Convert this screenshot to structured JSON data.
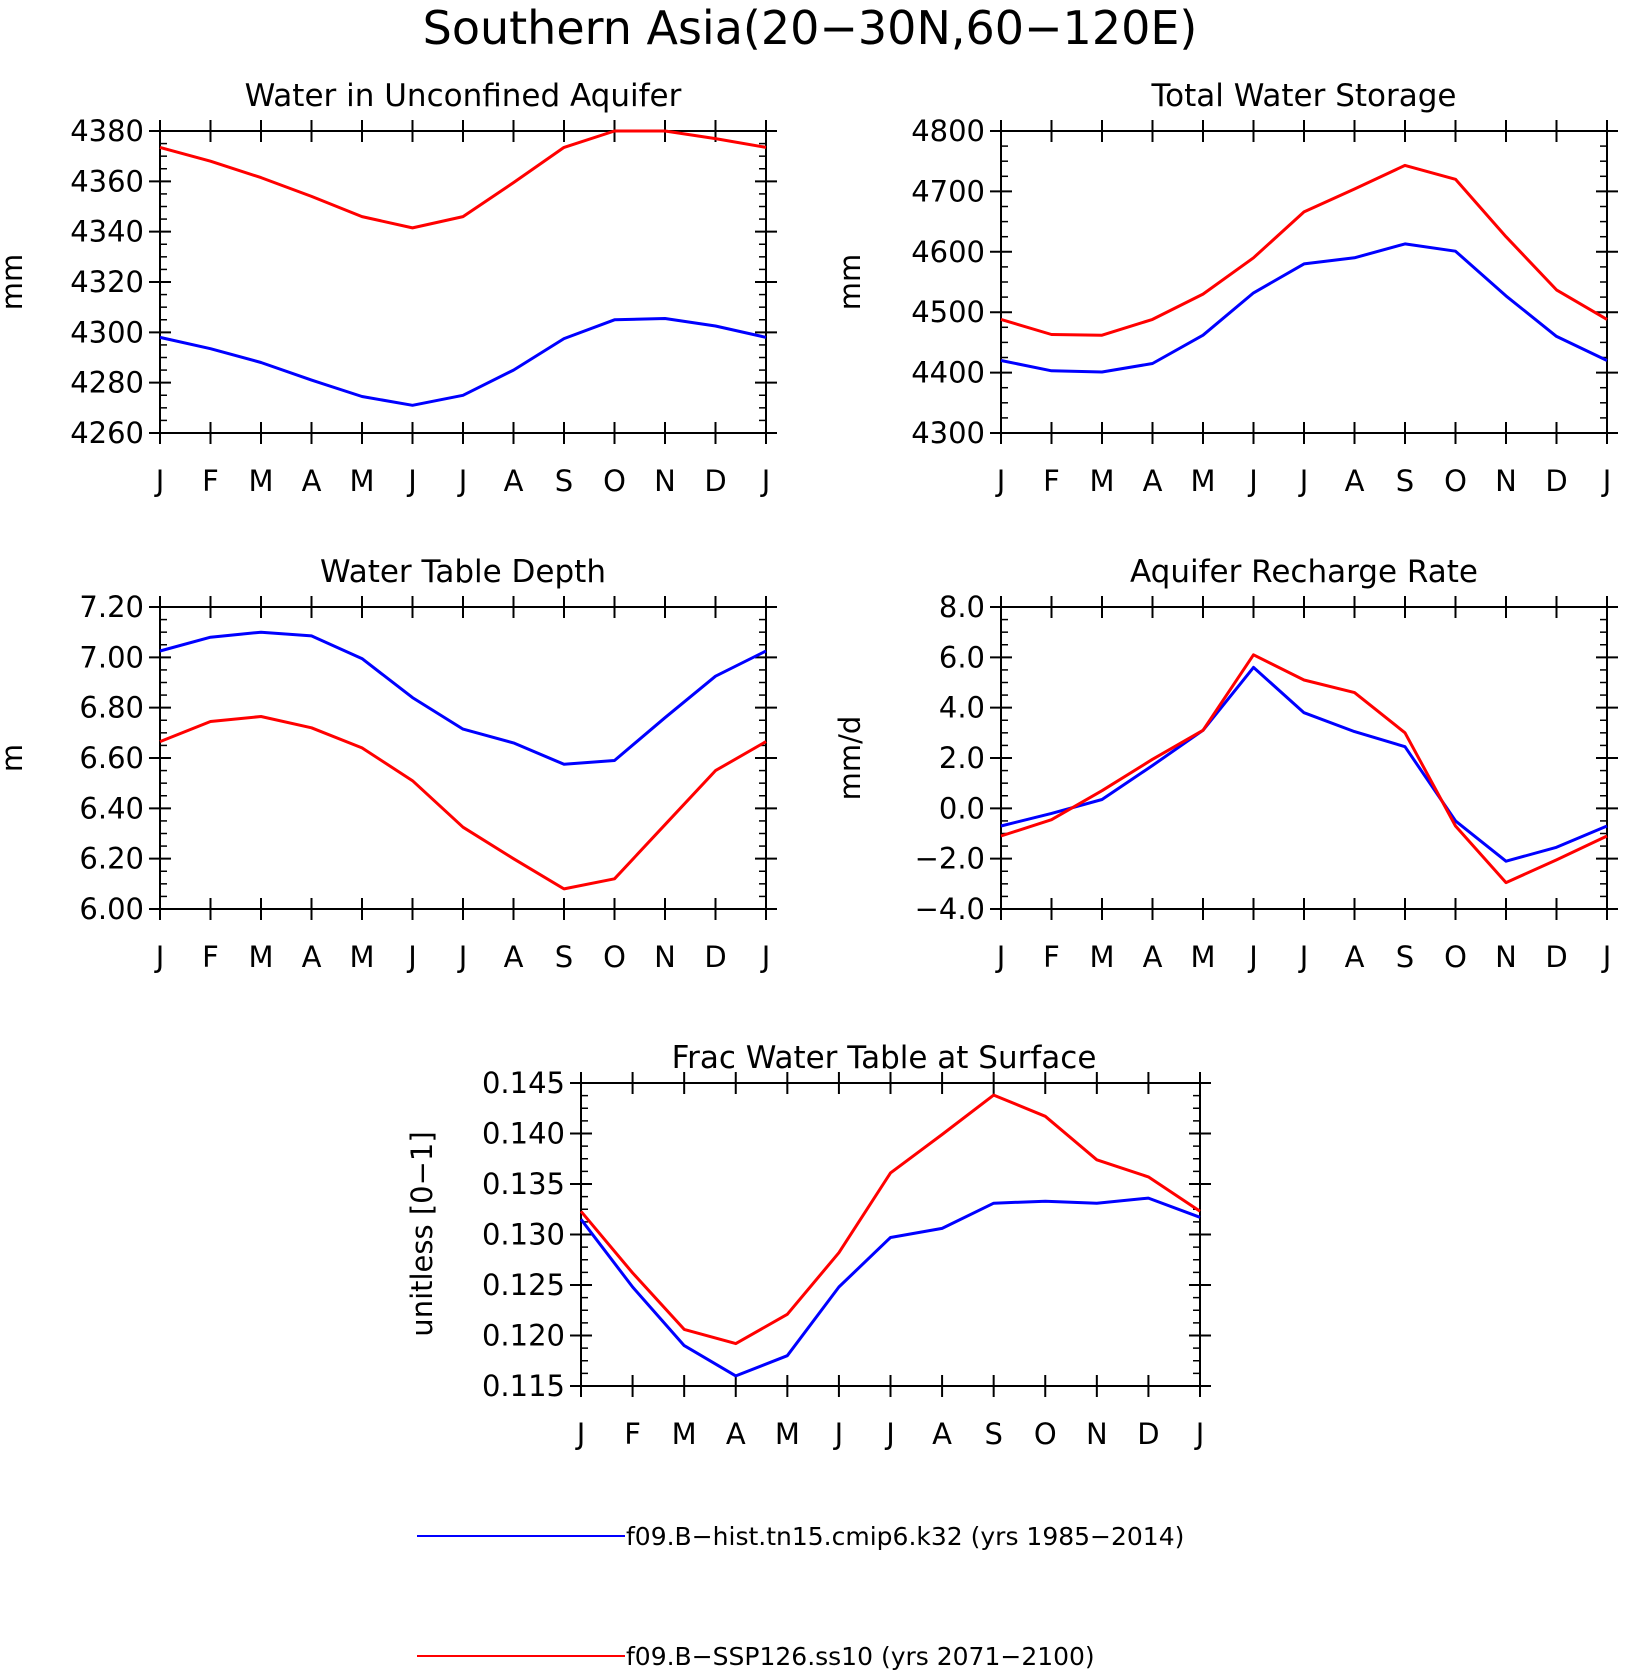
{
  "figure_title": "Southern Asia(20−30N,60−120E)",
  "legend": [
    {
      "label": "f09.B−hist.tn15.cmip6.k32 (yrs 1985−2014)",
      "color": "#0000ff"
    },
    {
      "label": "f09.B−SSP126.ss10 (yrs 2071−2100)",
      "color": "#ff0000"
    }
  ],
  "chart_data": [
    {
      "type": "line",
      "title": "Water in Unconfined Aquifer",
      "xlabel": "",
      "ylabel": "mm",
      "categories": [
        "J",
        "F",
        "M",
        "A",
        "M",
        "J",
        "J",
        "A",
        "S",
        "O",
        "N",
        "D",
        "J"
      ],
      "ylim": [
        4260,
        4380
      ],
      "yticks": [
        "4260",
        "4280",
        "4300",
        "4320",
        "4340",
        "4360",
        "4380"
      ],
      "grid": false,
      "series": [
        {
          "color": "#0000ff",
          "values": [
            4298,
            4293.5,
            4288,
            4281,
            4274.5,
            4271,
            4275,
            4285,
            4297.5,
            4305,
            4305.5,
            4302.5,
            4298
          ]
        },
        {
          "color": "#ff0000",
          "values": [
            4373.5,
            4368,
            4361.5,
            4354,
            4346,
            4341.5,
            4346,
            4359.5,
            4373.5,
            4380,
            4380,
            4377,
            4373.5
          ]
        }
      ]
    },
    {
      "type": "line",
      "title": "Total Water Storage",
      "xlabel": "",
      "ylabel": "mm",
      "categories": [
        "J",
        "F",
        "M",
        "A",
        "M",
        "J",
        "J",
        "A",
        "S",
        "O",
        "N",
        "D",
        "J"
      ],
      "ylim": [
        4300,
        4800
      ],
      "yticks": [
        "4300",
        "4400",
        "4500",
        "4600",
        "4700",
        "4800"
      ],
      "grid": false,
      "series": [
        {
          "color": "#0000ff",
          "values": [
            4420,
            4403,
            4401,
            4415,
            4462,
            4532,
            4580,
            4590,
            4613,
            4601,
            4527,
            4460,
            4420
          ]
        },
        {
          "color": "#ff0000",
          "values": [
            4488,
            4463,
            4462,
            4488,
            4530,
            4590,
            4666,
            4704,
            4743,
            4720,
            4625,
            4537,
            4488
          ]
        }
      ]
    },
    {
      "type": "line",
      "title": "Water Table Depth",
      "xlabel": "",
      "ylabel": "m",
      "categories": [
        "J",
        "F",
        "M",
        "A",
        "M",
        "J",
        "J",
        "A",
        "S",
        "O",
        "N",
        "D",
        "J"
      ],
      "ylim": [
        6.0,
        7.2
      ],
      "yticks": [
        "6.00",
        "6.20",
        "6.40",
        "6.60",
        "6.80",
        "7.00",
        "7.20"
      ],
      "grid": false,
      "series": [
        {
          "color": "#0000ff",
          "values": [
            7.025,
            7.08,
            7.1,
            7.085,
            6.995,
            6.84,
            6.715,
            6.66,
            6.575,
            6.59,
            6.76,
            6.925,
            7.025
          ]
        },
        {
          "color": "#ff0000",
          "values": [
            6.665,
            6.745,
            6.765,
            6.72,
            6.64,
            6.51,
            6.325,
            6.2,
            6.08,
            6.12,
            6.335,
            6.55,
            6.665
          ]
        }
      ]
    },
    {
      "type": "line",
      "title": "Aquifer Recharge Rate",
      "xlabel": "",
      "ylabel": "mm/d",
      "categories": [
        "J",
        "F",
        "M",
        "A",
        "M",
        "J",
        "J",
        "A",
        "S",
        "O",
        "N",
        "D",
        "J"
      ],
      "ylim": [
        -4.0,
        8.0
      ],
      "yticks": [
        "−4.0",
        "−2.0",
        "0.0",
        "2.0",
        "4.0",
        "6.0",
        "8.0"
      ],
      "grid": false,
      "series": [
        {
          "color": "#0000ff",
          "values": [
            -0.7,
            -0.2,
            0.35,
            1.7,
            3.1,
            5.6,
            3.8,
            3.05,
            2.45,
            -0.5,
            -2.1,
            -1.55,
            -0.7
          ]
        },
        {
          "color": "#ff0000",
          "values": [
            -1.1,
            -0.45,
            0.7,
            1.95,
            3.1,
            6.1,
            5.1,
            4.6,
            3.0,
            -0.7,
            -2.95,
            -2.05,
            -1.1
          ]
        }
      ]
    },
    {
      "type": "line",
      "title": "Frac Water Table at Surface",
      "xlabel": "",
      "ylabel": "unitless [0−1]",
      "categories": [
        "J",
        "F",
        "M",
        "A",
        "M",
        "J",
        "J",
        "A",
        "S",
        "O",
        "N",
        "D",
        "J"
      ],
      "ylim": [
        0.115,
        0.145
      ],
      "yticks": [
        "0.115",
        "0.120",
        "0.125",
        "0.130",
        "0.135",
        "0.140",
        "0.145"
      ],
      "grid": false,
      "series": [
        {
          "color": "#0000ff",
          "values": [
            0.1315,
            0.1248,
            0.119,
            0.116,
            0.118,
            0.1248,
            0.1297,
            0.1306,
            0.1331,
            0.1333,
            0.1331,
            0.1336,
            0.1317
          ]
        },
        {
          "color": "#ff0000",
          "values": [
            0.1323,
            0.1262,
            0.1206,
            0.1192,
            0.1221,
            0.1282,
            0.1361,
            0.1399,
            0.1438,
            0.1417,
            0.1374,
            0.1357,
            0.1323
          ]
        }
      ]
    }
  ]
}
